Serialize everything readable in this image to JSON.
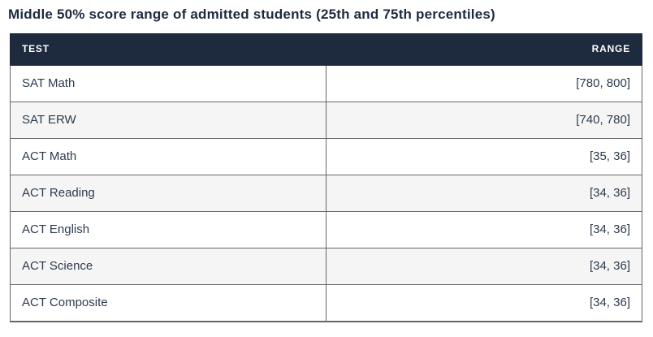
{
  "chart_data": {
    "type": "table",
    "title": "Middle 50% score range of admitted students (25th and 75th percentiles)",
    "columns": [
      "TEST",
      "RANGE"
    ],
    "rows": [
      [
        "SAT Math",
        "[780, 800]"
      ],
      [
        "SAT ERW",
        "[740, 780]"
      ],
      [
        "ACT Math",
        "[35, 36]"
      ],
      [
        "ACT Reading",
        "[34, 36]"
      ],
      [
        "ACT English",
        "[34, 36]"
      ],
      [
        "ACT Science",
        "[34, 36]"
      ],
      [
        "ACT Composite",
        "[34, 36]"
      ]
    ]
  },
  "colors": {
    "header_bg": "#1e2b3e",
    "header_text": "#ffffff",
    "title_text": "#1e2b3e",
    "cell_text": "#2e3b4d",
    "row_alt_bg": "#f5f5f5",
    "border": "#666666"
  }
}
